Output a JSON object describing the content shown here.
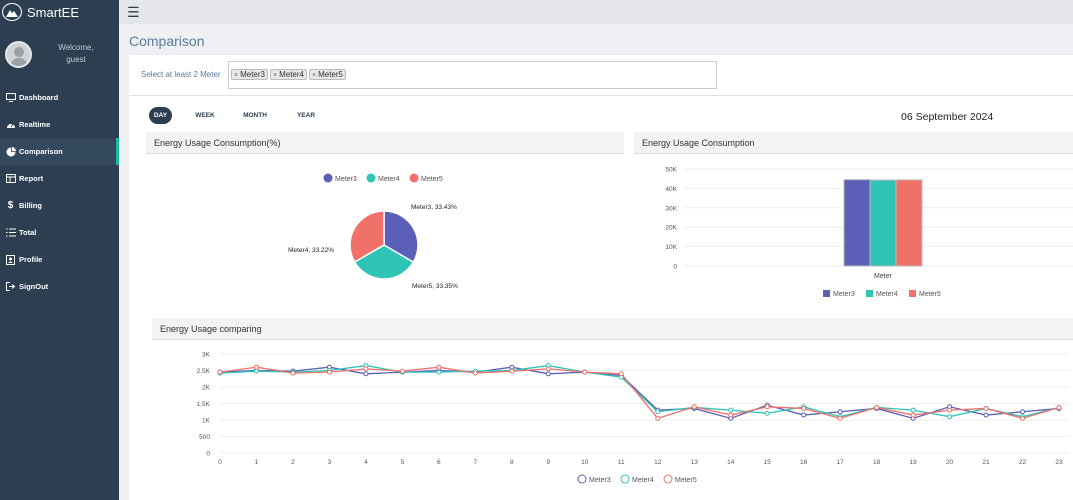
{
  "app": {
    "brand": "SmartEE"
  },
  "user": {
    "welcome": "Welcome,",
    "name": "guest"
  },
  "sidebar": {
    "items": [
      {
        "label": "Dashboard",
        "icon": "monitor-icon"
      },
      {
        "label": "Realtime",
        "icon": "gauge-icon"
      },
      {
        "label": "Comparison",
        "icon": "pie-chart-icon",
        "active": true
      },
      {
        "label": "Report",
        "icon": "table-icon"
      },
      {
        "label": "Billing",
        "icon": "dollar-icon"
      },
      {
        "label": "Total",
        "icon": "list-icon"
      },
      {
        "label": "Profile",
        "icon": "profile-icon"
      },
      {
        "label": "SignOut",
        "icon": "sign-out-icon"
      }
    ]
  },
  "page": {
    "title": "Comparison"
  },
  "selector": {
    "label": "Select at least 2 Meter",
    "tags": [
      "Meter3",
      "Meter4",
      "Meter5"
    ]
  },
  "periods": [
    "DAY",
    "WEEK",
    "MONTH",
    "YEAR"
  ],
  "active_period": "DAY",
  "date": "06 September 2024",
  "colors": {
    "meter3": "#5b5fb7",
    "meter4": "#2ec4b6",
    "meter5": "#f0706a",
    "sidebar": "#2c3e50"
  },
  "panels": {
    "pie_title": "Energy Usage Consumption(%)",
    "bar_title": "Energy Usage Consumption",
    "line_title": "Energy Usage comparing"
  },
  "chart_data": [
    {
      "type": "pie",
      "title": "Energy Usage Consumption(%)",
      "legend": [
        "Meter3",
        "Meter4",
        "Meter5"
      ],
      "slices": [
        {
          "name": "Meter3",
          "value": 33.43,
          "label": "Meter3, 33.43%"
        },
        {
          "name": "Meter4",
          "value": 33.22,
          "label": "Meter4, 33.22%"
        },
        {
          "name": "Meter5",
          "value": 33.35,
          "label": "Meter5, 33.35%"
        }
      ]
    },
    {
      "type": "bar",
      "title": "Energy Usage Consumption",
      "categories": [
        "Meter"
      ],
      "series": [
        {
          "name": "Meter3",
          "values": [
            44500
          ]
        },
        {
          "name": "Meter4",
          "values": [
            44300
          ]
        },
        {
          "name": "Meter5",
          "values": [
            44400
          ]
        }
      ],
      "yticks": [
        "0",
        "10K",
        "20K",
        "30K",
        "40K",
        "50K"
      ],
      "ylim": [
        0,
        50000
      ],
      "xlabel": "Meter"
    },
    {
      "type": "line",
      "title": "Energy Usage comparing",
      "x": [
        0,
        1,
        2,
        3,
        4,
        5,
        6,
        7,
        8,
        9,
        10,
        11,
        12,
        13,
        14,
        15,
        16,
        17,
        18,
        19,
        20,
        21,
        22,
        23
      ],
      "yticks": [
        "0",
        "500",
        "1K",
        "1.5K",
        "2K",
        "2.5K",
        "3K"
      ],
      "ylim": [
        0,
        3000
      ],
      "series": [
        {
          "name": "Meter3",
          "values": [
            2450,
            2500,
            2480,
            2600,
            2400,
            2450,
            2500,
            2450,
            2600,
            2400,
            2450,
            2350,
            1300,
            1350,
            1050,
            1450,
            1150,
            1250,
            1350,
            1050,
            1400,
            1150,
            1250,
            1350
          ]
        },
        {
          "name": "Meter4",
          "values": [
            2420,
            2480,
            2450,
            2500,
            2650,
            2450,
            2450,
            2480,
            2500,
            2650,
            2450,
            2300,
            1250,
            1380,
            1300,
            1200,
            1400,
            1100,
            1380,
            1300,
            1100,
            1350,
            1100,
            1380
          ]
        },
        {
          "name": "Meter5",
          "values": [
            2450,
            2600,
            2420,
            2450,
            2550,
            2480,
            2600,
            2420,
            2480,
            2550,
            2450,
            2400,
            1050,
            1400,
            1150,
            1400,
            1350,
            1050,
            1380,
            1150,
            1300,
            1350,
            1050,
            1380
          ]
        }
      ]
    }
  ]
}
